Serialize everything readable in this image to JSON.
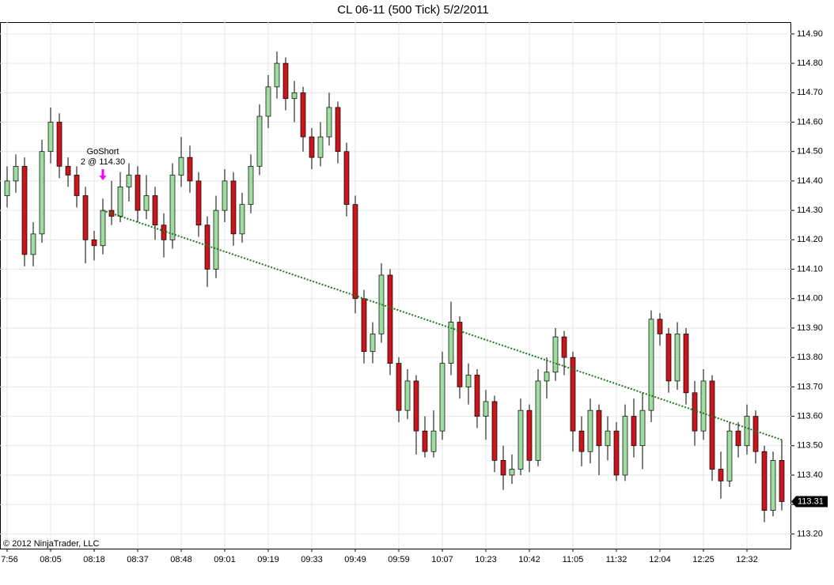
{
  "chart_data": {
    "type": "candlestick",
    "title": "CL 06-11 (500 Tick)  5/2/2011",
    "copyright": "© 2012 NinjaTrader, LLC",
    "categories": [
      "7:56",
      null,
      null,
      null,
      null,
      "08:05",
      null,
      null,
      null,
      null,
      "08:18",
      null,
      null,
      null,
      null,
      "08:37",
      null,
      null,
      null,
      null,
      "08:48",
      null,
      null,
      null,
      null,
      "09:01",
      null,
      null,
      null,
      null,
      "09:19",
      null,
      null,
      null,
      null,
      "09:33",
      null,
      null,
      null,
      null,
      "09:49",
      null,
      null,
      null,
      null,
      "09:59",
      null,
      null,
      null,
      null,
      "10:07",
      null,
      null,
      null,
      null,
      "10:23",
      null,
      null,
      null,
      null,
      "10:42",
      null,
      null,
      null,
      null,
      "11:05",
      null,
      null,
      null,
      null,
      "11:32",
      null,
      null,
      null,
      null,
      "12:04",
      null,
      null,
      null,
      null,
      "12:25",
      null,
      null,
      null,
      null,
      "12:32",
      null,
      null,
      null,
      null
    ],
    "open": [
      114.35,
      114.4,
      114.45,
      114.15,
      114.22,
      114.5,
      114.6,
      114.45,
      114.42,
      114.35,
      114.2,
      114.18,
      114.3,
      114.28,
      114.38,
      114.42,
      114.3,
      114.35,
      114.25,
      114.2,
      114.42,
      114.48,
      114.4,
      114.25,
      114.1,
      114.3,
      114.4,
      114.22,
      114.32,
      114.45,
      114.62,
      114.72,
      114.8,
      114.68,
      114.7,
      114.55,
      114.48,
      114.55,
      114.65,
      114.5,
      114.32,
      114.0,
      113.82,
      113.88,
      114.08,
      113.78,
      113.62,
      113.72,
      113.55,
      113.48,
      113.55,
      113.78,
      113.92,
      113.7,
      113.74,
      113.6,
      113.65,
      113.45,
      113.4,
      113.42,
      113.62,
      113.45,
      113.72,
      113.75,
      113.87,
      113.8,
      113.55,
      113.48,
      113.62,
      113.5,
      113.55,
      113.4,
      113.6,
      113.5,
      113.62,
      113.93,
      113.88,
      113.72,
      113.88,
      113.68,
      113.55,
      113.72,
      113.42,
      113.38,
      113.55,
      113.5,
      113.6,
      113.48,
      113.28,
      113.45
    ],
    "high": [
      114.45,
      114.49,
      114.48,
      114.26,
      114.54,
      114.65,
      114.63,
      114.48,
      114.45,
      114.38,
      114.23,
      114.34,
      114.4,
      114.43,
      114.46,
      114.45,
      114.42,
      114.38,
      114.29,
      114.46,
      114.55,
      114.52,
      114.43,
      114.28,
      114.35,
      114.44,
      114.43,
      114.36,
      114.49,
      114.66,
      114.76,
      114.84,
      114.82,
      114.74,
      114.72,
      114.58,
      114.6,
      114.7,
      114.67,
      114.53,
      114.35,
      114.03,
      113.92,
      114.12,
      114.1,
      113.8,
      113.76,
      113.74,
      113.6,
      113.62,
      113.82,
      113.99,
      113.94,
      113.78,
      113.76,
      113.69,
      113.67,
      113.5,
      113.47,
      113.66,
      113.64,
      113.76,
      113.8,
      113.9,
      113.89,
      113.82,
      113.6,
      113.66,
      113.64,
      113.6,
      113.58,
      113.64,
      113.66,
      113.68,
      113.96,
      113.95,
      113.9,
      113.92,
      113.9,
      113.72,
      113.76,
      113.74,
      113.48,
      113.58,
      113.58,
      113.64,
      113.62,
      113.5,
      113.48,
      113.52
    ],
    "low": [
      114.31,
      114.36,
      114.11,
      114.11,
      114.19,
      114.46,
      114.41,
      114.38,
      114.31,
      114.12,
      114.13,
      114.15,
      114.25,
      114.26,
      114.33,
      114.26,
      114.27,
      114.2,
      114.14,
      114.17,
      114.38,
      114.36,
      114.21,
      114.04,
      114.07,
      114.26,
      114.18,
      114.19,
      114.29,
      114.42,
      114.58,
      114.68,
      114.64,
      114.6,
      114.5,
      114.44,
      114.45,
      114.52,
      114.46,
      114.28,
      113.95,
      113.78,
      113.78,
      113.85,
      113.74,
      113.58,
      113.59,
      113.47,
      113.46,
      113.46,
      113.52,
      113.74,
      113.66,
      113.64,
      113.56,
      113.52,
      113.41,
      113.35,
      113.37,
      113.4,
      113.41,
      113.43,
      113.66,
      113.72,
      113.74,
      113.48,
      113.43,
      113.44,
      113.4,
      113.45,
      113.38,
      113.38,
      113.46,
      113.42,
      113.58,
      113.84,
      113.68,
      113.69,
      113.64,
      113.5,
      113.52,
      113.38,
      113.32,
      113.36,
      113.46,
      113.47,
      113.44,
      113.24,
      113.26,
      113.28
    ],
    "close": [
      114.4,
      114.45,
      114.15,
      114.22,
      114.5,
      114.6,
      114.45,
      114.42,
      114.35,
      114.2,
      114.18,
      114.3,
      114.28,
      114.38,
      114.42,
      114.3,
      114.35,
      114.25,
      114.2,
      114.42,
      114.48,
      114.4,
      114.25,
      114.1,
      114.3,
      114.4,
      114.22,
      114.32,
      114.45,
      114.62,
      114.72,
      114.8,
      114.68,
      114.7,
      114.55,
      114.48,
      114.55,
      114.65,
      114.5,
      114.32,
      114.0,
      113.82,
      113.88,
      114.08,
      113.78,
      113.62,
      113.72,
      113.55,
      113.48,
      113.55,
      113.78,
      113.92,
      113.7,
      113.74,
      113.6,
      113.65,
      113.45,
      113.4,
      113.42,
      113.62,
      113.45,
      113.72,
      113.75,
      113.87,
      113.8,
      113.55,
      113.48,
      113.62,
      113.5,
      113.55,
      113.4,
      113.6,
      113.5,
      113.62,
      113.93,
      113.88,
      113.72,
      113.88,
      113.68,
      113.55,
      113.72,
      113.42,
      113.38,
      113.55,
      113.5,
      113.6,
      113.48,
      113.28,
      113.45,
      113.31
    ],
    "up_color": "#9fdc9f",
    "down_color": "#c8161d",
    "ylim": [
      113.15,
      114.94
    ],
    "yticks": [
      {
        "value": 113.2,
        "label": "113.20"
      },
      {
        "value": 113.3,
        "label": "113.30"
      },
      {
        "value": 113.4,
        "label": "113.40"
      },
      {
        "value": 113.5,
        "label": "113.50"
      },
      {
        "value": 113.6,
        "label": "113.60"
      },
      {
        "value": 113.7,
        "label": "113.70"
      },
      {
        "value": 113.8,
        "label": "113.80"
      },
      {
        "value": 113.9,
        "label": "113.90"
      },
      {
        "value": 114.0,
        "label": "114.00"
      },
      {
        "value": 114.1,
        "label": "114.10"
      },
      {
        "value": 114.2,
        "label": "114.20"
      },
      {
        "value": 114.3,
        "label": "114.30"
      },
      {
        "value": 114.4,
        "label": "114.40"
      },
      {
        "value": 114.5,
        "label": "114.50"
      },
      {
        "value": 114.6,
        "label": "114.60"
      },
      {
        "value": 114.7,
        "label": "114.70"
      },
      {
        "value": 114.8,
        "label": "114.80"
      },
      {
        "value": 114.9,
        "label": "114.90"
      }
    ],
    "grid": true,
    "trend_line": {
      "x": [
        11,
        89
      ],
      "values": [
        114.3,
        113.52
      ],
      "color": "#1a7a1a"
    },
    "signal": {
      "text": "GoShort",
      "detail": "2 @ 114.30",
      "index": 11,
      "price": 114.3,
      "color": "#ff00ff"
    },
    "last_price": 113.31
  }
}
